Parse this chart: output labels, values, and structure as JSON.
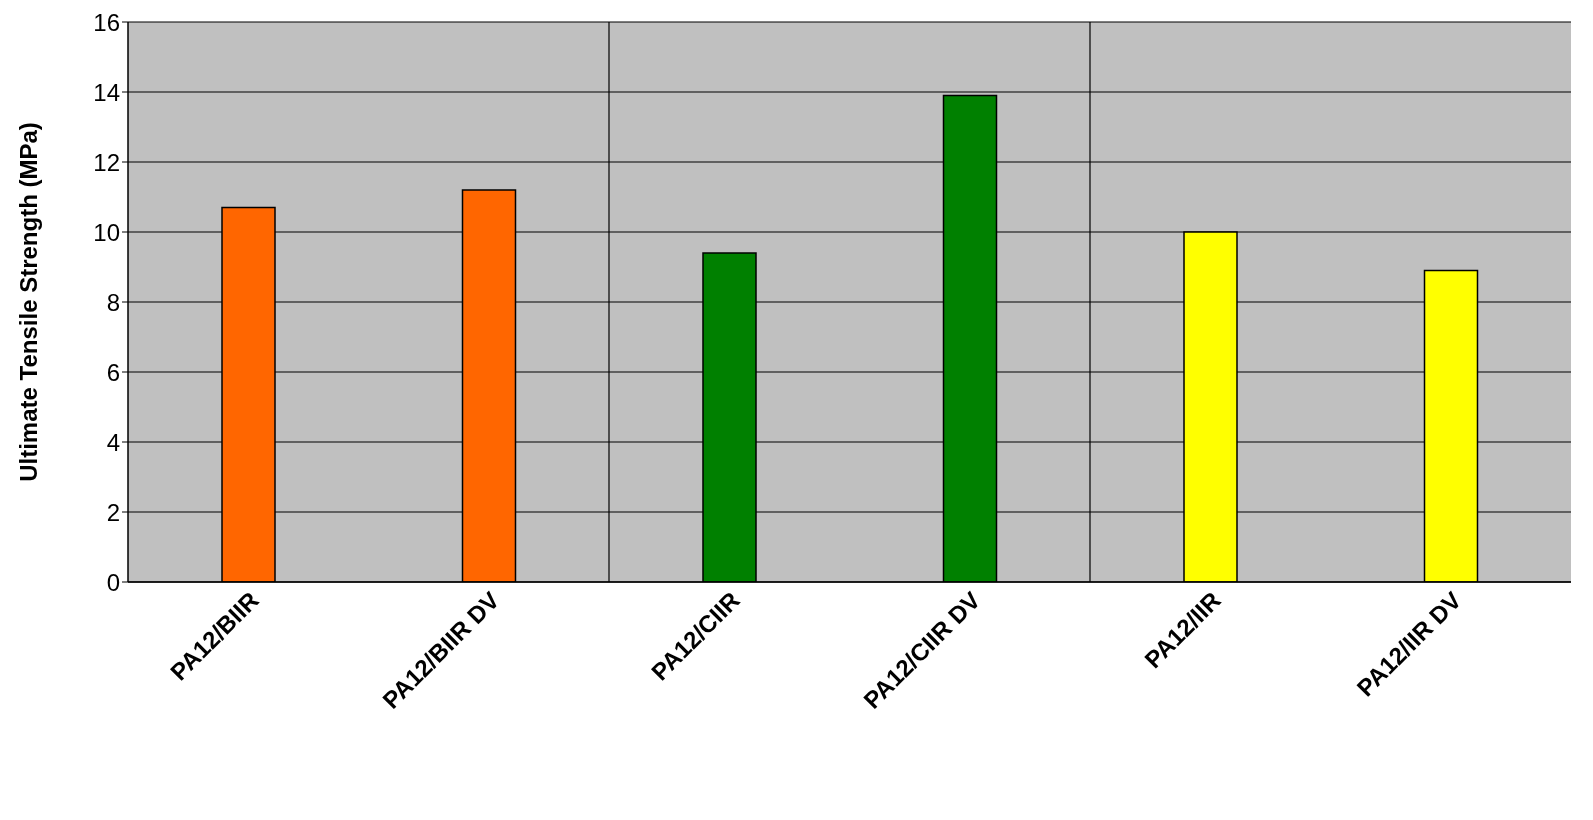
{
  "chart_data": {
    "type": "bar",
    "ylabel": "Ultimate Tensile Strength (MPa)",
    "categories": [
      "PA12/BIIR",
      "PA12/BIIR DV",
      "PA12/CIIR",
      "PA12/CIIR DV",
      "PA12/IIR",
      "PA12/IIR DV"
    ],
    "values": [
      10.7,
      11.2,
      9.4,
      13.9,
      10.0,
      8.9
    ],
    "colors": [
      "#ff6600",
      "#ff6600",
      "#008000",
      "#008000",
      "#ffff00",
      "#ffff00"
    ],
    "ylim": [
      0,
      16
    ],
    "yticks": [
      0,
      2,
      4,
      6,
      8,
      10,
      12,
      14,
      16
    ],
    "grid": true
  }
}
